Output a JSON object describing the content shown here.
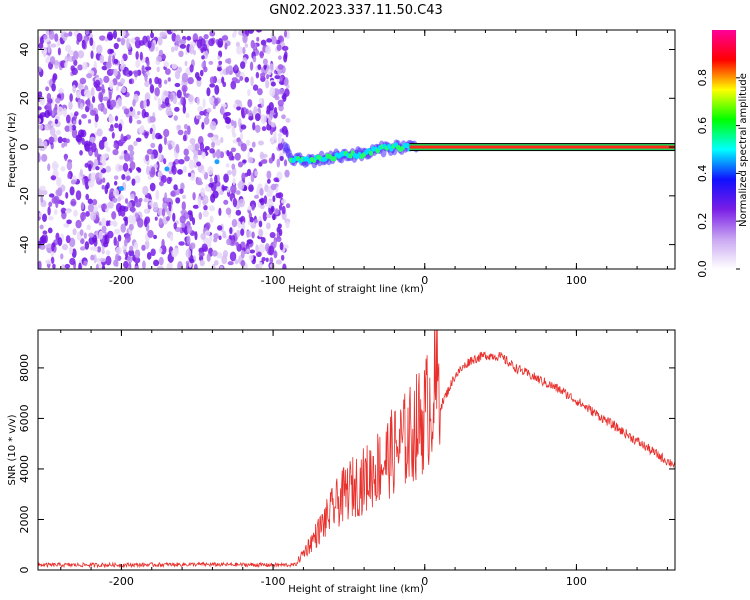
{
  "title": "GN02.2023.337.11.50.C43",
  "chart_data": [
    {
      "type": "heatmap",
      "xlabel": "Height of straight line (km)",
      "ylabel": "Frequency (Hz)",
      "xlim": [
        -255,
        165
      ],
      "ylim": [
        -50,
        48
      ],
      "xticks": [
        -200,
        -100,
        0,
        100
      ],
      "yticks": [
        -40,
        -20,
        0,
        20,
        40
      ],
      "colorbar": {
        "label": "Normalized spectral amplitude",
        "range": [
          0,
          1
        ],
        "ticks": [
          "0.0",
          "0.2",
          "0.4",
          "0.6",
          "0.8"
        ],
        "colors": [
          "#ffffff",
          "#c9a6f2",
          "#7a1ee6",
          "#1010ff",
          "#00ffff",
          "#00ff00",
          "#ffff00",
          "#ff0000",
          "#ff0099"
        ]
      },
      "noise_region_x": [
        -255,
        -90
      ],
      "signal_track": {
        "x": [
          -90,
          -80,
          -70,
          -60,
          -50,
          -40,
          -30,
          -20,
          -10,
          0,
          50,
          100,
          165
        ],
        "y": [
          -4,
          -6,
          -5,
          -4,
          -3,
          -3,
          -1,
          0,
          0,
          0,
          0,
          0,
          0
        ]
      }
    },
    {
      "type": "line",
      "xlabel": "Height of straight line (km)",
      "ylabel": "SNR (10 * v/v)",
      "xlim": [
        -255,
        165
      ],
      "ylim": [
        0,
        9500
      ],
      "xticks": [
        -200,
        -100,
        0,
        100
      ],
      "yticks": [
        0,
        2000,
        4000,
        6000,
        8000
      ],
      "color": "#e8302c",
      "series": [
        {
          "x": [
            -255,
            -200,
            -150,
            -100,
            -85,
            -70,
            -60,
            -50,
            -40,
            -30,
            -20,
            -10,
            0,
            10,
            20,
            30,
            40,
            50,
            60,
            70,
            80,
            90,
            100,
            110,
            120,
            130,
            140,
            150,
            160,
            165
          ],
          "values": [
            200,
            200,
            220,
            200,
            200,
            1300,
            2100,
            2700,
            3000,
            3500,
            4000,
            4500,
            5200,
            6400,
            7700,
            8300,
            8500,
            8450,
            8000,
            7700,
            7400,
            7100,
            6700,
            6300,
            5900,
            5500,
            5100,
            4700,
            4300,
            4200
          ]
        }
      ]
    }
  ]
}
